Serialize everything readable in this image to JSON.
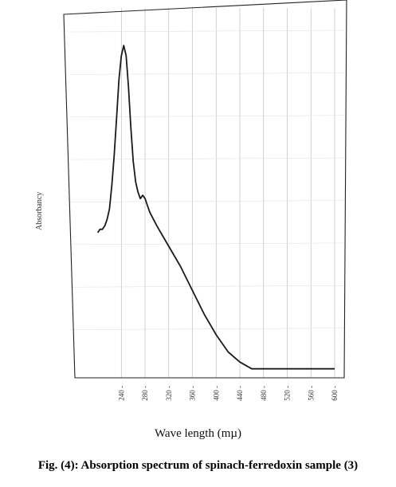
{
  "chart_data": {
    "type": "line",
    "xlabel": "Wave length (mµ)",
    "ylabel": "Absorbancy",
    "x_ticks": [
      240,
      280,
      320,
      360,
      400,
      440,
      480,
      520,
      560,
      600
    ],
    "xlim": [
      210,
      600
    ],
    "ylim": [
      0,
      1
    ],
    "grid": true,
    "series": [
      {
        "x": [
          200,
          204,
          208,
          212,
          216,
          220,
          224,
          228,
          232,
          236,
          240,
          244,
          248,
          252,
          256,
          260,
          264,
          268,
          272,
          276,
          280,
          284,
          288,
          300,
          320,
          340,
          360,
          380,
          400,
          420,
          440,
          460,
          480,
          500,
          520,
          540,
          560,
          580,
          600
        ],
        "y": [
          0.41,
          0.42,
          0.42,
          0.43,
          0.45,
          0.48,
          0.55,
          0.64,
          0.75,
          0.86,
          0.93,
          0.96,
          0.93,
          0.84,
          0.72,
          0.62,
          0.56,
          0.53,
          0.51,
          0.52,
          0.51,
          0.49,
          0.47,
          0.43,
          0.37,
          0.31,
          0.24,
          0.17,
          0.11,
          0.06,
          0.03,
          0.01,
          0.01,
          0.01,
          0.01,
          0.01,
          0.01,
          0.01,
          0.01
        ]
      }
    ]
  },
  "caption": "Fig. (4): Absorption spectrum of spinach-ferredoxin sample (3)"
}
